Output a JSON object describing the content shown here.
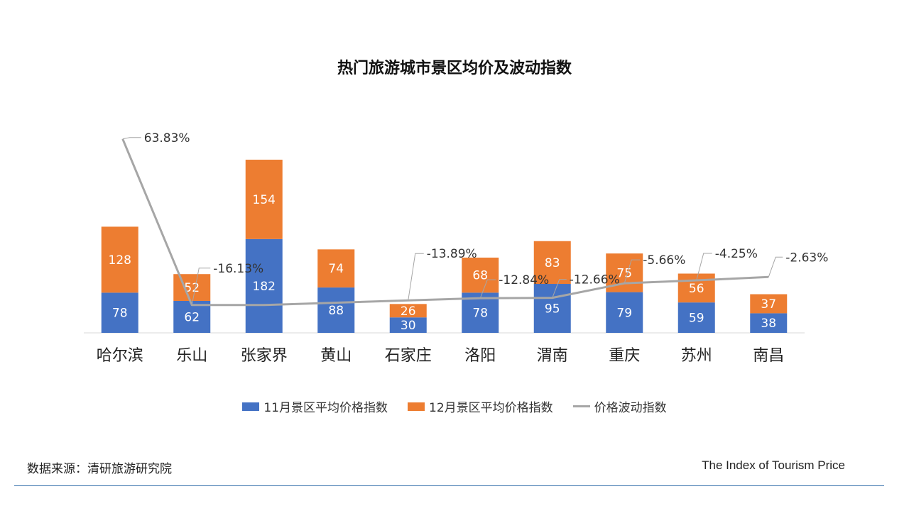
{
  "chart_data": {
    "type": "bar",
    "stacked": true,
    "title": "热门旅游城市景区均价及波动指数",
    "categories": [
      "哈尔滨",
      "乐山",
      "张家界",
      "黄山",
      "石家庄",
      "洛阳",
      "渭南",
      "重庆",
      "苏州",
      "南昌"
    ],
    "series": [
      {
        "name": "11月景区平均价格指数",
        "type": "bar",
        "color": "#4472c4",
        "values": [
          78,
          62,
          182,
          88,
          30,
          78,
          95,
          79,
          59,
          38
        ]
      },
      {
        "name": "12月景区平均价格指数",
        "type": "bar",
        "color": "#ed7d31",
        "values": [
          128,
          52,
          154,
          74,
          26,
          68,
          83,
          75,
          56,
          37
        ]
      },
      {
        "name": "价格波动指数",
        "type": "line",
        "color": "#a6a6a6",
        "values": [
          63.83,
          -16.13,
          -16.13,
          -15.0,
          -13.89,
          -12.84,
          -12.66,
          -5.66,
          -4.25,
          -2.63
        ],
        "labels": [
          "63.83%",
          "-16.13%",
          "",
          "",
          "-13.89%",
          "-12.84%",
          "-12.66%",
          "-5.66%",
          "-4.25%",
          "-2.63%"
        ]
      }
    ],
    "grid": false,
    "legend_position": "bottom"
  },
  "footer": {
    "source": "数据来源：清研旅游研究院",
    "brand": "The Index of Tourism Price"
  }
}
